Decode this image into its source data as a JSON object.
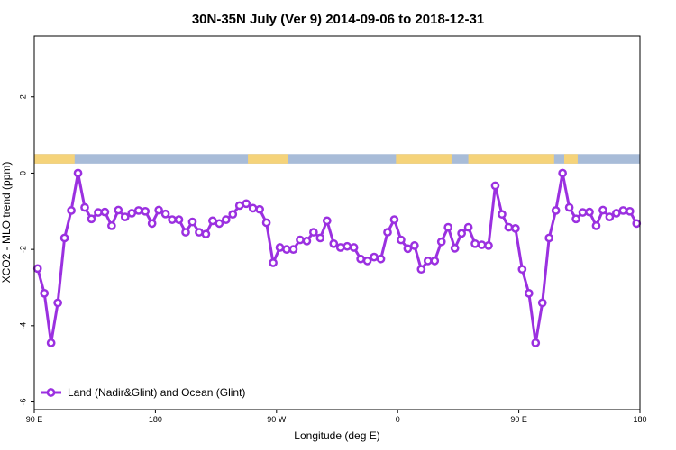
{
  "chart_data": {
    "type": "line",
    "title": "30N-35N July (Ver 9)   2014-09-06 to 2018-12-31",
    "xlabel": "Longitude (deg E)",
    "ylabel": "XCO2 - MLO trend (ppm)",
    "xlim": [
      90,
      450
    ],
    "ylim": [
      -6.2,
      3.6
    ],
    "x_ticks": [
      {
        "value": 90,
        "label": "90 E"
      },
      {
        "value": 162,
        "label": "180"
      },
      {
        "value": 234,
        "label": "90 W"
      },
      {
        "value": 306,
        "label": "0"
      },
      {
        "value": 378,
        "label": "90 E"
      },
      {
        "value": 450,
        "label": "180"
      }
    ],
    "y_ticks": [
      {
        "value": -6,
        "label": "-6"
      },
      {
        "value": -4,
        "label": "-4"
      },
      {
        "value": -2,
        "label": "-2"
      },
      {
        "value": 0,
        "label": "0"
      },
      {
        "value": 2,
        "label": "2"
      }
    ],
    "legend": {
      "position": "bottom-left",
      "entries": [
        "Land (Nadir&Glint) and Ocean (Glint)"
      ]
    },
    "grid": false,
    "land_ocean_band": {
      "y_range": [
        0.25,
        0.5
      ],
      "land_color": "#f5d37a",
      "ocean_color": "#a8bcd8",
      "land_x_ranges": [
        [
          90,
          114
        ],
        [
          217,
          241
        ],
        [
          305,
          338
        ],
        [
          348,
          399
        ],
        [
          405,
          413
        ]
      ]
    },
    "series": [
      {
        "name": "Land (Nadir&Glint) and Ocean (Glint)",
        "color": "#9b30e0",
        "x": [
          92,
          96,
          100,
          104,
          108,
          112,
          116,
          120,
          124,
          128,
          132,
          136,
          140,
          144,
          148,
          152,
          156,
          160,
          164,
          168,
          172,
          176,
          180,
          184,
          188,
          192,
          196,
          200,
          204,
          208,
          212,
          216,
          220,
          224,
          228,
          232,
          236,
          240,
          244,
          248,
          252,
          256,
          260,
          264,
          268,
          272,
          276,
          280,
          284,
          288,
          292,
          296,
          300,
          304,
          308,
          312,
          316,
          320,
          324,
          328,
          332,
          336,
          340,
          344,
          348,
          352,
          356,
          360,
          364,
          368,
          372,
          376,
          380,
          384,
          388,
          392,
          396,
          400,
          404,
          408,
          412,
          416,
          420,
          424,
          428,
          432,
          436,
          440,
          444,
          448
        ],
        "y": [
          -2.5,
          -3.15,
          -4.45,
          -3.4,
          -1.7,
          -0.98,
          0.0,
          -0.9,
          -1.2,
          -1.03,
          -1.02,
          -1.38,
          -0.97,
          -1.15,
          -1.05,
          -0.98,
          -1.0,
          -1.32,
          -0.97,
          -1.07,
          -1.22,
          -1.22,
          -1.55,
          -1.28,
          -1.55,
          -1.6,
          -1.25,
          -1.32,
          -1.22,
          -1.08,
          -0.85,
          -0.8,
          -0.92,
          -0.95,
          -1.3,
          -2.35,
          -1.95,
          -2.0,
          -2.0,
          -1.75,
          -1.78,
          -1.55,
          -1.7,
          -1.25,
          -1.85,
          -1.95,
          -1.92,
          -1.95,
          -2.25,
          -2.3,
          -2.2,
          -2.25,
          -1.55,
          -1.22,
          -1.75,
          -1.98,
          -1.9,
          -2.52,
          -2.3,
          -2.3,
          -1.8,
          -1.42,
          -1.97,
          -1.58,
          -1.42,
          -1.85,
          -1.88,
          -1.9,
          -0.33,
          -1.08,
          -1.42,
          -1.45,
          -2.52,
          -3.15,
          -4.45,
          -3.4,
          -1.7,
          -0.98,
          0.0,
          -0.9,
          -1.2,
          -1.03,
          -1.02,
          -1.38,
          -0.97,
          -1.15,
          -1.05,
          -0.98,
          -1.0,
          -1.32
        ]
      }
    ]
  }
}
